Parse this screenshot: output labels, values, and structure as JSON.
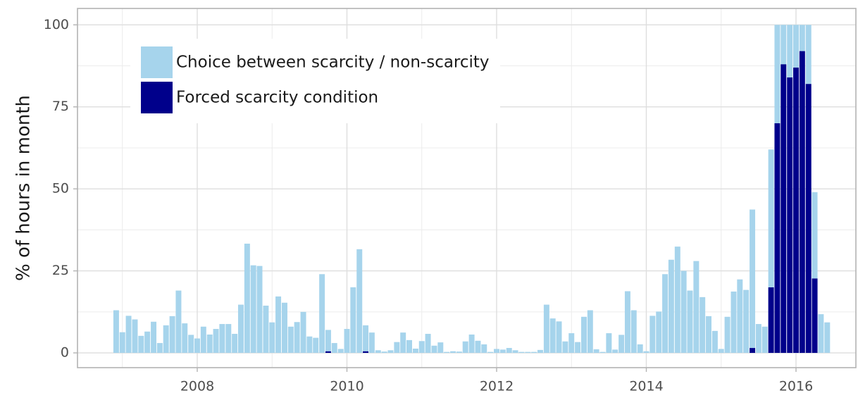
{
  "chart_data": {
    "type": "stacked-bar",
    "y_label": "% of hours in month",
    "x": [
      2006.917,
      2007.0,
      2007.083,
      2007.167,
      2007.25,
      2007.333,
      2007.417,
      2007.5,
      2007.583,
      2007.667,
      2007.75,
      2007.833,
      2007.917,
      2008.0,
      2008.083,
      2008.167,
      2008.25,
      2008.333,
      2008.417,
      2008.5,
      2008.583,
      2008.667,
      2008.75,
      2008.833,
      2008.917,
      2009.0,
      2009.083,
      2009.167,
      2009.25,
      2009.333,
      2009.417,
      2009.5,
      2009.583,
      2009.667,
      2009.75,
      2009.833,
      2009.917,
      2010.0,
      2010.083,
      2010.167,
      2010.25,
      2010.333,
      2010.417,
      2010.5,
      2010.583,
      2010.667,
      2010.75,
      2010.833,
      2010.917,
      2011.0,
      2011.083,
      2011.167,
      2011.25,
      2011.333,
      2011.417,
      2011.5,
      2011.583,
      2011.667,
      2011.75,
      2011.833,
      2011.917,
      2012.0,
      2012.083,
      2012.167,
      2012.25,
      2012.333,
      2012.417,
      2012.5,
      2012.583,
      2012.667,
      2012.75,
      2012.833,
      2012.917,
      2013.0,
      2013.083,
      2013.167,
      2013.25,
      2013.333,
      2013.417,
      2013.5,
      2013.583,
      2013.667,
      2013.75,
      2013.833,
      2013.917,
      2014.0,
      2014.083,
      2014.167,
      2014.25,
      2014.333,
      2014.417,
      2014.5,
      2014.583,
      2014.667,
      2014.75,
      2014.833,
      2014.917,
      2015.0,
      2015.083,
      2015.167,
      2015.25,
      2015.333,
      2015.417,
      2015.5,
      2015.583,
      2015.667,
      2015.75,
      2015.833,
      2015.917,
      2016.0,
      2016.083,
      2016.167,
      2016.25,
      2016.333,
      2016.417
    ],
    "series": [
      {
        "name": "Choice between scarcity / non-scarcity",
        "color": "#a6d4ec",
        "values": [
          13,
          6.3,
          11.3,
          10.2,
          5.2,
          6.5,
          9.5,
          3,
          8.4,
          11.2,
          19,
          9,
          5.5,
          4.4,
          8,
          5.6,
          7.3,
          8.8,
          8.8,
          5.8,
          14.7,
          33.3,
          26.7,
          26.5,
          14.4,
          9.3,
          17.2,
          15.3,
          8,
          9.4,
          12.5,
          5,
          4.6,
          24,
          6.5,
          3,
          1.2,
          7.3,
          20,
          31.6,
          7.9,
          6.2,
          0.8,
          0.4,
          0.8,
          3.3,
          6.2,
          3.9,
          1.3,
          3.6,
          5.8,
          2.2,
          3.2,
          0.3,
          0.5,
          0.4,
          3.5,
          5.6,
          3.7,
          2.6,
          0.3,
          1.2,
          1,
          1.5,
          0.8,
          0.3,
          0.3,
          0.3,
          0.9,
          14.7,
          10.5,
          9.6,
          3.5,
          6,
          3.3,
          11,
          13,
          1.1,
          0.3,
          6,
          1,
          5.5,
          18.8,
          13,
          2.6,
          0.5,
          11.3,
          12.6,
          24,
          28.4,
          32.4,
          25,
          19,
          28,
          17,
          11.2,
          6.7,
          1.2,
          11,
          18.7,
          22.4,
          19.2,
          42.2,
          8.8,
          8,
          42,
          30,
          12,
          16,
          13,
          8,
          18,
          26.3,
          11.8,
          9.3
        ]
      },
      {
        "name": "Forced scarcity condition",
        "color": "#00008b",
        "values": [
          0,
          0,
          0,
          0,
          0,
          0,
          0,
          0,
          0,
          0,
          0,
          0,
          0,
          0,
          0,
          0,
          0,
          0,
          0,
          0,
          0,
          0,
          0,
          0,
          0,
          0,
          0,
          0,
          0,
          0,
          0,
          0,
          0,
          0,
          0.5,
          0,
          0,
          0,
          0,
          0,
          0.5,
          0,
          0,
          0,
          0,
          0,
          0,
          0,
          0,
          0,
          0,
          0,
          0,
          0,
          0,
          0,
          0,
          0,
          0,
          0,
          0,
          0,
          0,
          0,
          0,
          0,
          0,
          0,
          0,
          0,
          0,
          0,
          0,
          0,
          0,
          0,
          0,
          0,
          0,
          0,
          0,
          0,
          0,
          0,
          0,
          0,
          0,
          0,
          0,
          0,
          0,
          0,
          0,
          0,
          0,
          0,
          0,
          0,
          0,
          0,
          0,
          0,
          1.5,
          0,
          0,
          20,
          70,
          88,
          84,
          87,
          92,
          82,
          22.7,
          0,
          0
        ]
      }
    ],
    "xlim": [
      2006.4,
      2016.8
    ],
    "xticks": [
      2008,
      2010,
      2012,
      2014,
      2016
    ],
    "ylim": [
      -4.5,
      105
    ],
    "yticks": [
      0,
      25,
      50,
      75,
      100
    ],
    "grid": true,
    "legend": "top-left"
  }
}
